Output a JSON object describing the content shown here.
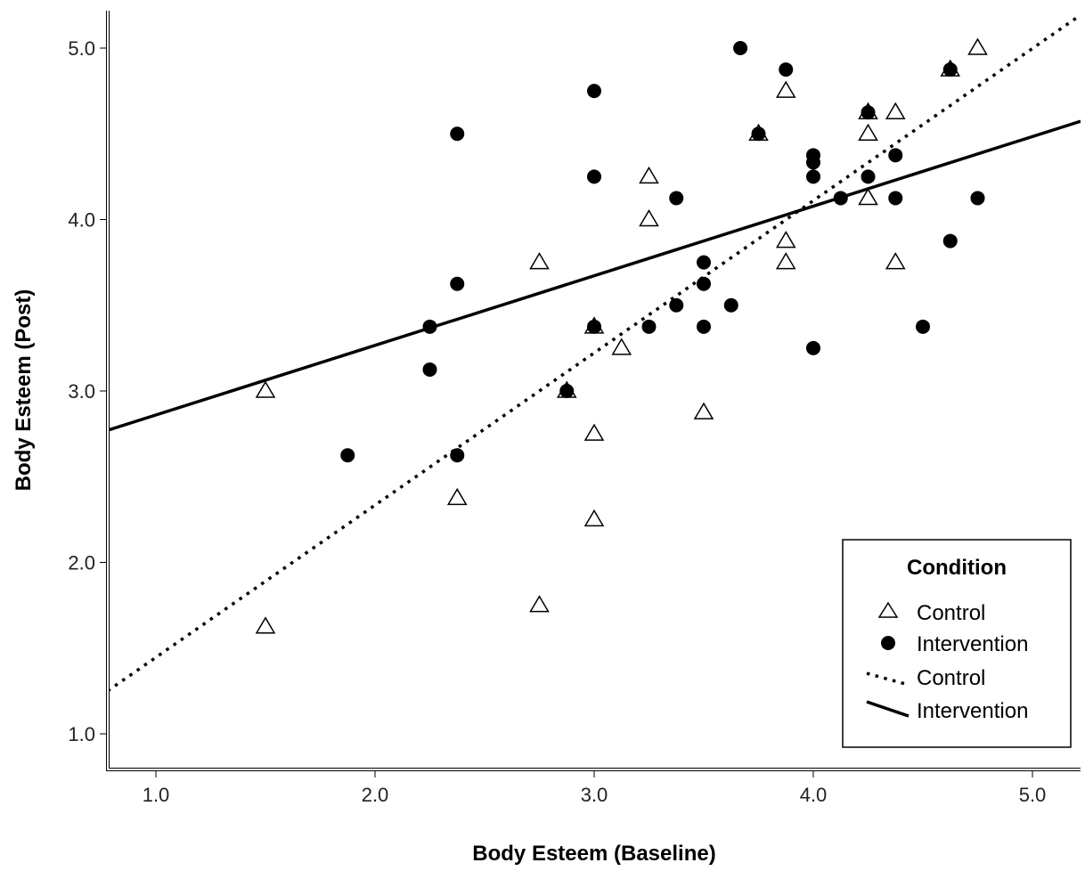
{
  "chart_data": {
    "type": "scatter",
    "xlabel": "Body Esteem (Baseline)",
    "ylabel": "Body Esteem (Post)",
    "xlim": [
      0.78,
      5.22
    ],
    "ylim": [
      0.78,
      5.22
    ],
    "xticks": [
      1.0,
      2.0,
      3.0,
      4.0,
      5.0
    ],
    "yticks": [
      1.0,
      2.0,
      3.0,
      4.0,
      5.0
    ],
    "xtick_labels": [
      "1.0",
      "2.0",
      "3.0",
      "4.0",
      "5.0"
    ],
    "ytick_labels": [
      "1.0",
      "2.0",
      "3.0",
      "4.0",
      "5.0"
    ],
    "grid": false,
    "legend": {
      "title": "Condition",
      "position": "bottom-right",
      "entries": [
        {
          "label": "Control",
          "kind": "triangle-marker"
        },
        {
          "label": "Intervention",
          "kind": "circle-marker"
        },
        {
          "label": "Control",
          "kind": "dotted-line"
        },
        {
          "label": "Intervention",
          "kind": "solid-line"
        }
      ]
    },
    "series": [
      {
        "name": "Control",
        "marker": "triangle-open",
        "color": "#000000",
        "points": [
          [
            1.5,
            3.0
          ],
          [
            1.5,
            1.625
          ],
          [
            2.375,
            2.375
          ],
          [
            2.75,
            3.75
          ],
          [
            2.75,
            1.75
          ],
          [
            3.0,
            2.75
          ],
          [
            3.0,
            2.25
          ],
          [
            3.0,
            3.375
          ],
          [
            3.125,
            3.25
          ],
          [
            3.25,
            4.25
          ],
          [
            3.25,
            4.0
          ],
          [
            3.5,
            2.875
          ],
          [
            3.75,
            4.5
          ],
          [
            3.875,
            4.75
          ],
          [
            3.875,
            3.875
          ],
          [
            3.875,
            3.75
          ],
          [
            4.25,
            4.5
          ],
          [
            4.25,
            4.125
          ],
          [
            4.25,
            4.625
          ],
          [
            4.375,
            4.625
          ],
          [
            4.375,
            3.75
          ],
          [
            4.625,
            4.875
          ],
          [
            4.75,
            5.0
          ],
          [
            2.875,
            3.0
          ]
        ]
      },
      {
        "name": "Intervention",
        "marker": "circle-filled",
        "color": "#000000",
        "points": [
          [
            1.875,
            2.625
          ],
          [
            2.25,
            3.375
          ],
          [
            2.25,
            3.125
          ],
          [
            2.375,
            4.5
          ],
          [
            2.375,
            3.625
          ],
          [
            2.375,
            2.625
          ],
          [
            2.875,
            3.0
          ],
          [
            3.0,
            4.75
          ],
          [
            3.0,
            4.25
          ],
          [
            3.0,
            3.375
          ],
          [
            3.25,
            3.375
          ],
          [
            3.375,
            4.125
          ],
          [
            3.375,
            3.5
          ],
          [
            3.5,
            3.75
          ],
          [
            3.5,
            3.625
          ],
          [
            3.5,
            3.375
          ],
          [
            3.625,
            3.5
          ],
          [
            3.667,
            5.0
          ],
          [
            3.75,
            4.5
          ],
          [
            3.875,
            4.875
          ],
          [
            4.0,
            4.375
          ],
          [
            4.0,
            4.333
          ],
          [
            4.0,
            4.25
          ],
          [
            4.0,
            3.25
          ],
          [
            4.125,
            4.125
          ],
          [
            4.25,
            4.625
          ],
          [
            4.25,
            4.25
          ],
          [
            4.375,
            4.375
          ],
          [
            4.375,
            4.125
          ],
          [
            4.5,
            3.375
          ],
          [
            4.625,
            4.875
          ],
          [
            4.625,
            3.875
          ],
          [
            4.75,
            4.125
          ]
        ]
      }
    ],
    "fit_lines": [
      {
        "name": "Control",
        "style": "dotted",
        "slope": 0.888,
        "intercept": 0.558
      },
      {
        "name": "Intervention",
        "style": "solid",
        "slope": 0.406,
        "intercept": 2.454
      }
    ]
  }
}
